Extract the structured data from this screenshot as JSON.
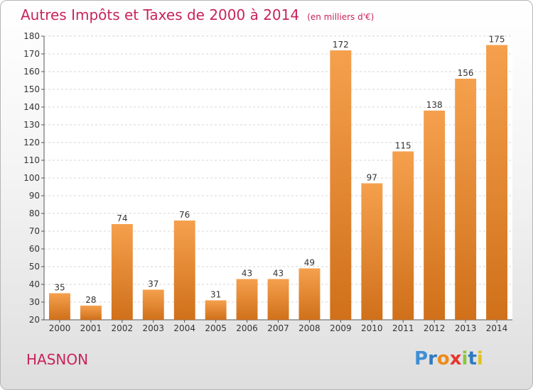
{
  "chart_data": {
    "type": "bar",
    "title": "Autres Impôts et Taxes de 2000 à 2014",
    "unit_note": "(en milliers d'€)",
    "categories": [
      "2000",
      "2001",
      "2002",
      "2003",
      "2004",
      "2005",
      "2006",
      "2007",
      "2008",
      "2009",
      "2010",
      "2011",
      "2012",
      "2013",
      "2014"
    ],
    "values": [
      35,
      28,
      74,
      37,
      76,
      31,
      43,
      43,
      49,
      172,
      97,
      115,
      138,
      156,
      175
    ],
    "value_labels": [
      "35",
      "28",
      "74",
      "37",
      "76",
      "31",
      "43",
      "43",
      "49",
      "172",
      "97",
      "115",
      "138",
      "156",
      "175"
    ],
    "ylim": [
      20,
      180
    ],
    "yticks": [
      "20",
      "30",
      "40",
      "50",
      "60",
      "70",
      "80",
      "90",
      "100",
      "110",
      "120",
      "130",
      "140",
      "150",
      "160",
      "170",
      "180"
    ],
    "grid": true,
    "legend": "none",
    "bar_color_top": "#f5a04d",
    "bar_color_bottom": "#d0701a"
  },
  "commune": "HASNON",
  "logo": {
    "letters": [
      "P",
      "r",
      "o",
      "x",
      "i",
      "t",
      "i"
    ],
    "colors": [
      "#3d8fd6",
      "#2e7bbf",
      "#ef8a1a",
      "#e8362f",
      "#8cc63f",
      "#2e7bbf",
      "#e0c21c"
    ]
  }
}
